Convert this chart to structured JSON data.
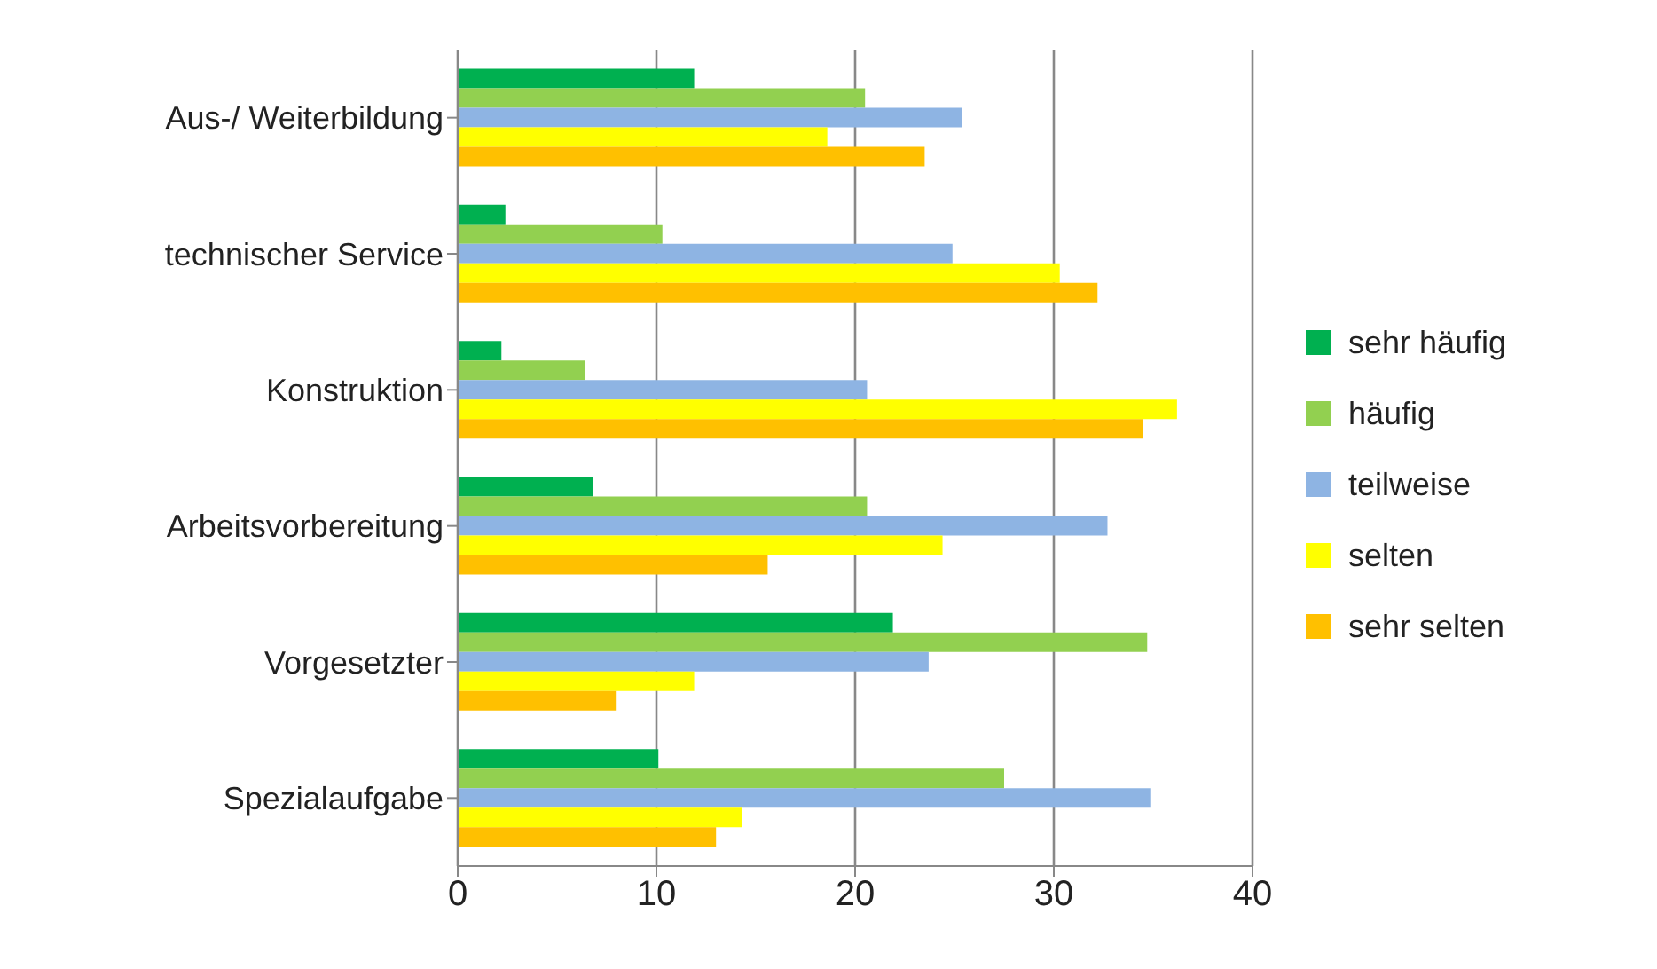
{
  "chart_data": {
    "type": "bar",
    "orientation": "horizontal",
    "categories": [
      "Aus-/ Weiterbildung",
      "technischer Service",
      "Konstruktion",
      "Arbeitsvorbereitung",
      "Vorgesetzter",
      "Spezialaufgabe"
    ],
    "series": [
      {
        "name": "sehr häufig",
        "color": "#00b050",
        "values": [
          11.9,
          2.4,
          2.2,
          6.8,
          21.9,
          10.1
        ]
      },
      {
        "name": "häufig",
        "color": "#92d050",
        "values": [
          20.5,
          10.3,
          6.4,
          20.6,
          34.7,
          27.5
        ]
      },
      {
        "name": "teilweise",
        "color": "#8eb4e3",
        "values": [
          25.4,
          24.9,
          20.6,
          32.7,
          23.7,
          34.9
        ]
      },
      {
        "name": "selten",
        "color": "#ffff00",
        "values": [
          18.6,
          30.3,
          36.2,
          24.4,
          11.9,
          14.3
        ]
      },
      {
        "name": "sehr selten",
        "color": "#ffc000",
        "values": [
          23.5,
          32.2,
          34.5,
          15.6,
          8.0,
          13.0
        ]
      }
    ],
    "xlim": [
      0,
      40
    ],
    "xticks": [
      0,
      10,
      20,
      30,
      40
    ],
    "grid": "x",
    "legend": "right"
  }
}
